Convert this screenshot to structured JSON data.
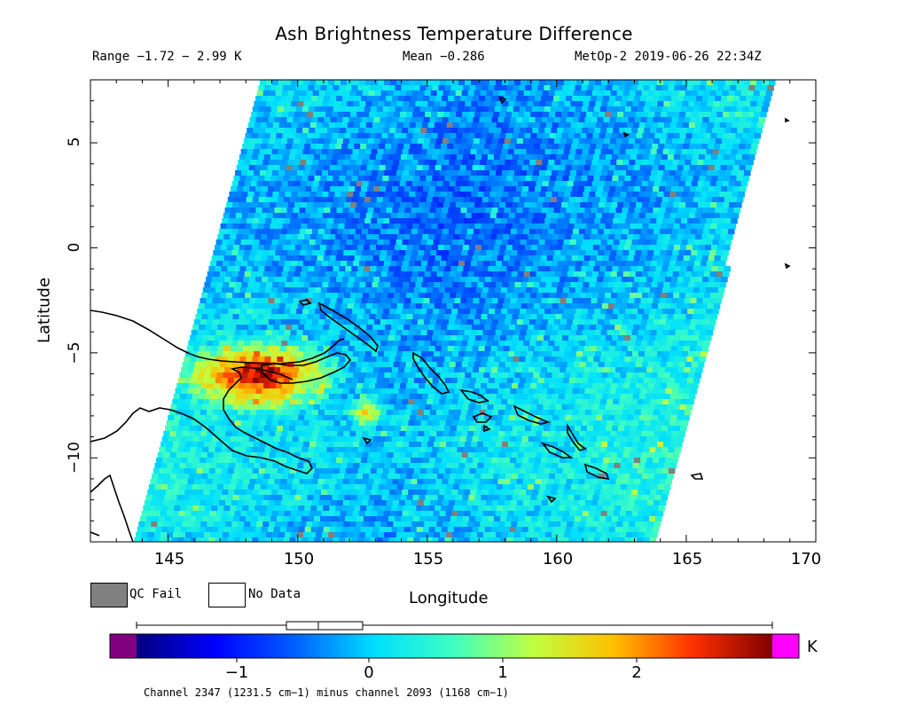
{
  "header": {
    "title": "Ash Brightness Temperature Difference",
    "range": "Range −1.72 − 2.99 K",
    "mean": "Mean −0.286",
    "satellite_time": "MetOp-2 2019-06-26 22:34Z"
  },
  "map": {
    "lon_range": [
      142,
      170
    ],
    "lat_range": [
      -14,
      8
    ],
    "x_label": "Longitude",
    "y_label": "Latitude",
    "x_ticks": [
      "145",
      "150",
      "155",
      "160",
      "165",
      "170"
    ],
    "y_ticks": [
      "5",
      "0",
      "−5",
      "−10"
    ]
  },
  "legend": {
    "qc_fail_label": "QC Fail",
    "no_data_label": "No Data",
    "qc_fail_color": "#808080",
    "no_data_color": "#ffffff"
  },
  "colorbar": {
    "unit": "K",
    "ticks": [
      "−1",
      "0",
      "1",
      "2"
    ],
    "under_color": "#800080",
    "over_color": "#ff00ff",
    "caption": "Channel 2347 (1231.5 cm−1) minus channel 2093 (1168 cm−1)"
  }
}
